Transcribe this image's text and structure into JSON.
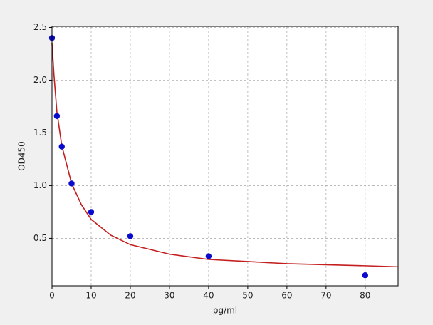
{
  "chart_data": {
    "type": "scatter",
    "x_label": "pg/ml",
    "y_label": "OD450",
    "xlim": [
      0,
      88.4
    ],
    "ylim": [
      0.05,
      2.51
    ],
    "xticks": [
      0,
      10,
      20,
      30,
      40,
      50,
      60,
      70,
      80
    ],
    "yticks": [
      0.5,
      {
        "value": 1,
        "label": "1.0"
      },
      1.5,
      {
        "value": 2,
        "label": "2.0"
      },
      2.5
    ],
    "grid": true,
    "series": [
      {
        "style": "line",
        "color": "#c41e1e",
        "x": [
          0,
          0.5,
          1.25,
          2.5,
          5,
          7.5,
          10,
          15,
          20,
          30,
          40,
          50,
          60,
          70,
          80,
          88.4
        ],
        "values": [
          2.35,
          2.05,
          1.7,
          1.38,
          1.02,
          0.82,
          0.68,
          0.53,
          0.44,
          0.35,
          0.3,
          0.28,
          0.26,
          0.25,
          0.24,
          0.23
        ]
      },
      {
        "style": "markers",
        "color": "#0a0acc",
        "x": [
          0,
          1.25,
          2.5,
          5,
          10,
          20,
          40,
          80
        ],
        "values": [
          2.4,
          1.66,
          1.37,
          1.02,
          0.75,
          0.52,
          0.33,
          0.15
        ]
      }
    ]
  }
}
